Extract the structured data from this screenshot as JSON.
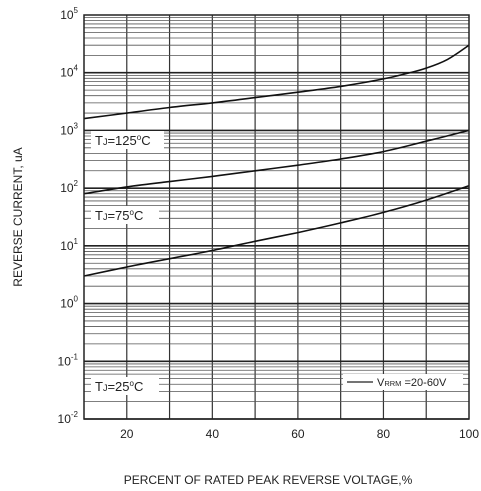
{
  "chart_data": {
    "type": "line",
    "title": "",
    "xlabel": "PERCENT OF RATED PEAK REVERSE VOLTAGE,%",
    "ylabel": "REVERSE CURRENT, uA",
    "xlim": [
      10,
      100
    ],
    "ylim": [
      0.01,
      100000
    ],
    "yscale": "log",
    "grid": true,
    "x_ticks": [
      20,
      40,
      60,
      80,
      100
    ],
    "y_ticks": [
      {
        "value": 0.01,
        "base": "10",
        "exp": "-2"
      },
      {
        "value": 0.1,
        "base": "10",
        "exp": "-1"
      },
      {
        "value": 1,
        "base": "10",
        "exp": "0"
      },
      {
        "value": 10,
        "base": "10",
        "exp": "1"
      },
      {
        "value": 100,
        "base": "10",
        "exp": "2"
      },
      {
        "value": 1000,
        "base": "10",
        "exp": "3"
      },
      {
        "value": 10000,
        "base": "10",
        "exp": "4"
      },
      {
        "value": 100000,
        "base": "10",
        "exp": "5"
      }
    ],
    "series": [
      {
        "label": "TJ=125°C",
        "label_parts": {
          "t": "T",
          "j": "J",
          "rest": "=125",
          "deg": "o",
          "c": "C"
        },
        "x": [
          10,
          20,
          30,
          40,
          50,
          60,
          70,
          80,
          85,
          90,
          95,
          100
        ],
        "y": [
          1600,
          2000,
          2500,
          3000,
          3700,
          4600,
          5800,
          7800,
          9500,
          12000,
          17000,
          30000
        ]
      },
      {
        "label": "TJ=75°C",
        "label_parts": {
          "t": "T",
          "j": "J",
          "rest": "=75",
          "deg": "o",
          "c": "C"
        },
        "x": [
          10,
          20,
          30,
          40,
          50,
          60,
          70,
          80,
          90,
          100
        ],
        "y": [
          80,
          105,
          130,
          160,
          200,
          250,
          320,
          430,
          650,
          1000
        ]
      },
      {
        "label": "TJ=25°C",
        "label_parts": {
          "t": "T",
          "j": "J",
          "rest": "=25",
          "deg": "o",
          "c": "C"
        },
        "x": [
          10,
          20,
          30,
          40,
          50,
          60,
          70,
          80,
          90,
          100
        ],
        "y": [
          3,
          4.3,
          6,
          8.3,
          12,
          17,
          25,
          38,
          62,
          110
        ]
      }
    ],
    "legend": {
      "position": "bottom-right",
      "parts": {
        "v": "V",
        "sub": "RRM",
        "rest": " =20-60V"
      }
    }
  }
}
